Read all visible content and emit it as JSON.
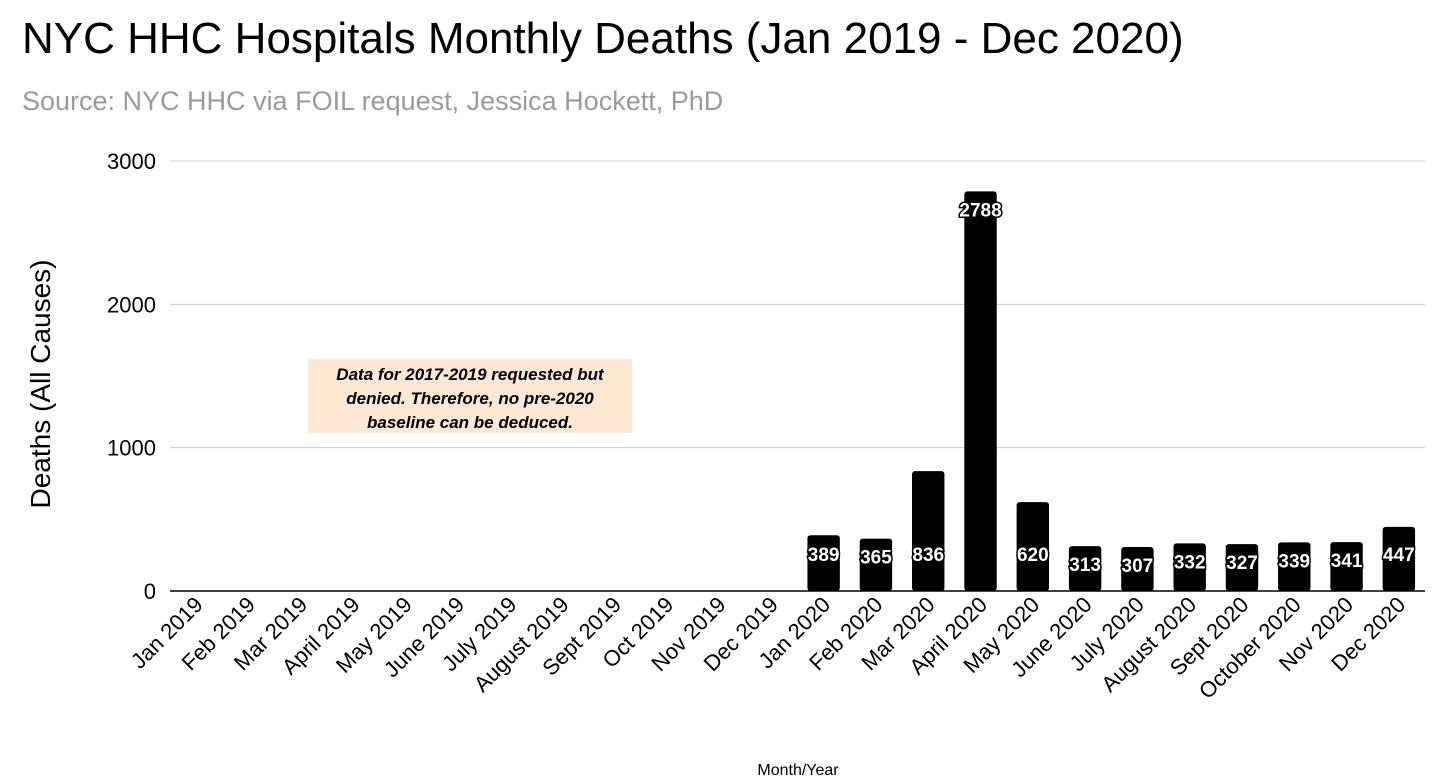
{
  "chart_data": {
    "type": "bar",
    "title": "NYC HHC Hospitals Monthly Deaths (Jan 2019 - Dec 2020)",
    "subtitle": "Source: NYC HHC via FOIL request, Jessica Hockett, PhD",
    "xlabel": "Month/Year",
    "ylabel": "Deaths (All Causes)",
    "ylim": [
      0,
      3000
    ],
    "yticks": [
      0,
      1000,
      2000,
      3000
    ],
    "grid": true,
    "categories": [
      "Jan 2019",
      "Feb 2019",
      "Mar 2019",
      "April 2019",
      "May 2019",
      "June 2019",
      "July 2019",
      "August 2019",
      "Sept 2019",
      "Oct 2019",
      "Nov 2019",
      "Dec 2019",
      "Jan 2020",
      "Feb 2020",
      "Mar 2020",
      "April 2020",
      "May 2020",
      "June 2020",
      "July 2020",
      "August 2020",
      "Sept 2020",
      "October 2020",
      "Nov 2020",
      "Dec 2020"
    ],
    "values": [
      null,
      null,
      null,
      null,
      null,
      null,
      null,
      null,
      null,
      null,
      null,
      null,
      389,
      365,
      836,
      2788,
      620,
      313,
      307,
      332,
      327,
      339,
      341,
      447
    ],
    "annotation": "Data for 2017-2019 requested but denied. Therefore, no pre-2020 baseline can be deduced.",
    "colors": {
      "bar": "#000000",
      "label": "#ffffff",
      "grid": "#cccccc",
      "annotation_bg": "#fde9d3"
    }
  }
}
